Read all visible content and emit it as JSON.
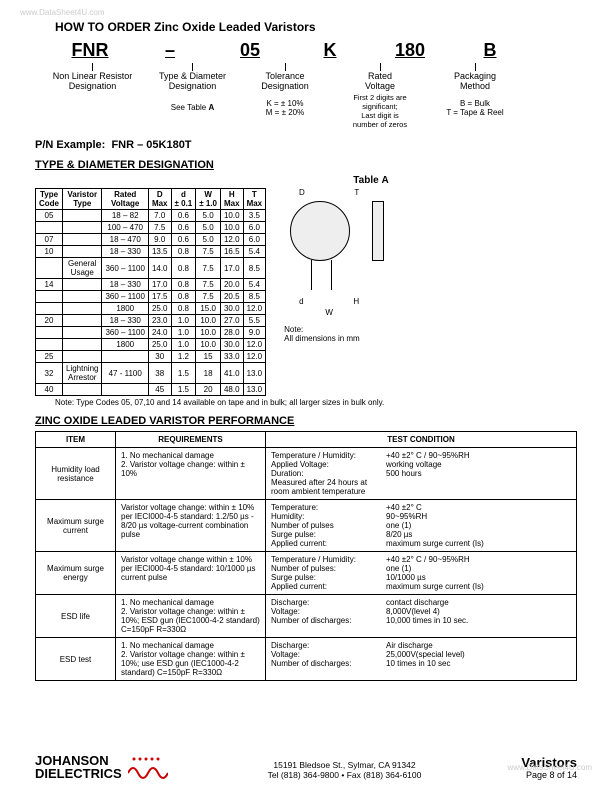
{
  "watermark": "www.DataSheet4U.com",
  "title": "HOW TO ORDER Zinc Oxide Leaded Varistors",
  "order_codes": [
    "FNR",
    "–",
    "05",
    "K",
    "180",
    "B"
  ],
  "order_cols": [
    {
      "label": "Non Linear Resistor\nDesignation",
      "sub": ""
    },
    {
      "label": "Type & Diameter\nDesignation",
      "sub": "See Table A"
    },
    {
      "label": "Tolerance\nDesignation",
      "sub": "K = ± 10%\nM = ± 20%"
    },
    {
      "label": "Rated\nVoltage",
      "sub": "First 2 digits are\nsignificant;\nLast digit is\nnumber of zeros"
    },
    {
      "label": "Packaging\nMethod",
      "sub": "B = Bulk\nT = Tape & Reel"
    }
  ],
  "pn_label": "P/N Example:",
  "pn_value": "FNR – 05K180T",
  "tableA_title": "TYPE & DIAMETER DESIGNATION",
  "tableA_caption": "Table A",
  "tableA_headers": [
    "Type\nCode",
    "Varistor\nType",
    "Rated\nVoltage",
    "D\nMax",
    "d\n± 0.1",
    "W\n± 1.0",
    "H\nMax",
    "T\nMax"
  ],
  "tableA_rows": [
    {
      "code": "05",
      "type": "",
      "volt": "18 – 82",
      "d": "7.0",
      "dd": "0.6",
      "w": "5.0",
      "h": "10.0",
      "t": "3.5"
    },
    {
      "code": "",
      "type": "",
      "volt": "100 – 470",
      "d": "7.5",
      "dd": "0.6",
      "w": "5.0",
      "h": "10.0",
      "t": "6.0"
    },
    {
      "code": "07",
      "type": "",
      "volt": "18 – 470",
      "d": "9.0",
      "dd": "0.6",
      "w": "5.0",
      "h": "12.0",
      "t": "6.0"
    },
    {
      "code": "10",
      "type": "",
      "volt": "18 – 330",
      "d": "13.5",
      "dd": "0.8",
      "w": "7.5",
      "h": "16.5",
      "t": "5.4"
    },
    {
      "code": "",
      "type": "General\nUsage",
      "volt": "360 – 1100",
      "d": "14.0",
      "dd": "0.8",
      "w": "7.5",
      "h": "17.0",
      "t": "8.5"
    },
    {
      "code": "14",
      "type": "",
      "volt": "18 – 330",
      "d": "17.0",
      "dd": "0.8",
      "w": "7.5",
      "h": "20.0",
      "t": "5.4"
    },
    {
      "code": "",
      "type": "",
      "volt": "360 – 1100",
      "d": "17.5",
      "dd": "0.8",
      "w": "7.5",
      "h": "20.5",
      "t": "8.5"
    },
    {
      "code": "",
      "type": "",
      "volt": "1800",
      "d": "25.0",
      "dd": "0.8",
      "w": "15.0",
      "h": "30.0",
      "t": "12.0"
    },
    {
      "code": "20",
      "type": "",
      "volt": "18 – 330",
      "d": "23.0",
      "dd": "1.0",
      "w": "10.0",
      "h": "27.0",
      "t": "5.5"
    },
    {
      "code": "",
      "type": "",
      "volt": "360 – 1100",
      "d": "24.0",
      "dd": "1.0",
      "w": "10.0",
      "h": "28.0",
      "t": "9.0"
    },
    {
      "code": "",
      "type": "",
      "volt": "1800",
      "d": "25.0",
      "dd": "1.0",
      "w": "10.0",
      "h": "30.0",
      "t": "12.0"
    },
    {
      "code": "25",
      "type": "",
      "volt": "",
      "d": "30",
      "dd": "1.2",
      "w": "15",
      "h": "33.0",
      "t": "12.0"
    },
    {
      "code": "32",
      "type": "Lightning\nArrestor",
      "volt": "47 - 1100",
      "d": "38",
      "dd": "1.5",
      "w": "18",
      "h": "41.0",
      "t": "13.0"
    },
    {
      "code": "40",
      "type": "",
      "volt": "",
      "d": "45",
      "dd": "1.5",
      "w": "20",
      "h": "48.0",
      "t": "13.0"
    }
  ],
  "tableA_note": "Note:   Type Codes 05, 07,10 and 14 available on tape and in bulk; all larger sizes in bulk only.",
  "diagram_labels": {
    "D": "D",
    "T": "T",
    "d": "d",
    "H": "H",
    "W": "W",
    "note": "Note:\nAll dimensions in mm"
  },
  "perf_title": "ZINC OXIDE LEADED VARISTOR PERFORMANCE",
  "perf_headers": [
    "ITEM",
    "REQUIREMENTS",
    "TEST CONDITION"
  ],
  "perf_rows": [
    {
      "item": "Humidity load\nresistance",
      "req": "1. No mechanical damage\n2. Varistor voltage change: within ± 10%",
      "tc": [
        [
          "Temperature / Humidity:",
          "+40 ±2° C / 90~95%RH"
        ],
        [
          "Applied Voltage:",
          "working voltage"
        ],
        [
          "Duration:",
          "500 hours"
        ],
        [
          "Measured after 24 hours at room ambient temperature",
          ""
        ]
      ]
    },
    {
      "item": "Maximum surge\ncurrent",
      "req": "Varistor voltage change: within ± 10% per IECI000-4-5 standard: 1.2/50 µs - 8/20 µs voltage-current combination pulse",
      "tc": [
        [
          "Temperature:",
          "+40 ±2° C"
        ],
        [
          "Humidity:",
          "90~95%RH"
        ],
        [
          "Number of pulses",
          "one (1)"
        ],
        [
          "Surge pulse:",
          "8/20 µs"
        ],
        [
          "Applied current:",
          "maximum surge current (Is)"
        ]
      ]
    },
    {
      "item": "Maximum surge\nenergy",
      "req": "Varistor voltage change within ± 10% per IECI000-4-5 standard: 10/1000 µs current pulse",
      "tc": [
        [
          "Temperature / Humidity:",
          "+40 ±2° C / 90~95%RH"
        ],
        [
          "Number of pulses:",
          "one (1)"
        ],
        [
          "Surge pulse:",
          "10/1000 µs"
        ],
        [
          "Applied current:",
          "maximum surge current (Is)"
        ]
      ]
    },
    {
      "item": "ESD life",
      "req": "1. No mechanical damage\n2. Varistor voltage change: within ± 10%; ESD gun (IEC1000-4-2 standard) C=150pF R=330Ω",
      "tc": [
        [
          "Discharge:",
          "contact discharge"
        ],
        [
          "Voltage:",
          "8,000V(level 4)"
        ],
        [
          "Number of discharges:",
          "10,000 times in 10 sec."
        ]
      ]
    },
    {
      "item": "ESD test",
      "req": "1. No mechanical damage\n2. Varistor voltage change: within ± 10%; use ESD gun (IEC1000-4-2 standard) C=150pF R=330Ω",
      "tc": [
        [
          "Discharge:",
          "Air discharge"
        ],
        [
          "Voltage:",
          "25,000V(special level)"
        ],
        [
          "Number of discharges:",
          "10 times in 10 sec"
        ]
      ]
    }
  ],
  "footer": {
    "company1": "JOHANSON",
    "company2": "DIELECTRICS",
    "addr": "15191 Bledsoe St., Sylmar, CA 91342",
    "phone": "Tel (818) 364-9800 • Fax (818) 364-6100",
    "product": "Varistors",
    "page": "Page 8 of 14"
  }
}
